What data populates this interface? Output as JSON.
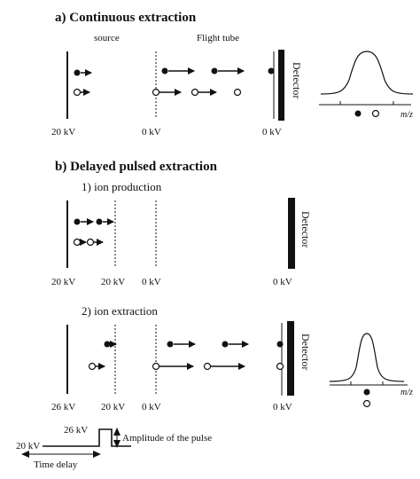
{
  "section_a": {
    "title": "a)   Continuous extraction",
    "source_label": "source",
    "tube_label": "Flight tube",
    "voltages": [
      "20 kV",
      "0 kV",
      "0 kV"
    ],
    "detector_label": "Detector",
    "mz_label": "m/z"
  },
  "section_b": {
    "title": "b)   Delayed pulsed extraction",
    "step1_title": "1)  ion production",
    "step1_voltages": [
      "20 kV",
      "20 kV",
      "0 kV",
      "0 kV"
    ],
    "step1_detector": "Detector",
    "step2_title": "2) ion extraction",
    "step2_voltages": [
      "26 kV",
      "20 kV",
      "0 kV",
      "0 kV"
    ],
    "step2_detector": "Detector",
    "mz_label": "m/z"
  },
  "pulse": {
    "high_label": "26 kV",
    "low_label": "20 kV",
    "amplitude_label": "Amplitude of the pulse",
    "delay_label": "Time delay"
  }
}
